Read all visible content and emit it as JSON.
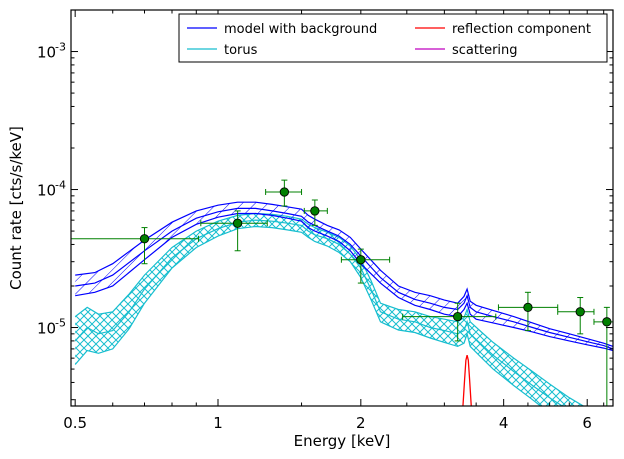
{
  "chart_data": {
    "type": "line",
    "title": "",
    "xlabel": "Energy [keV]",
    "ylabel": "Count rate [cts/s/keV]",
    "xscale": "log",
    "yscale": "log",
    "xlim": [
      0.49,
      6.8
    ],
    "ylim": [
      2.7e-06,
      0.002
    ],
    "x_ticks": [
      0.5,
      1,
      2,
      4,
      6
    ],
    "x_tick_labels": [
      "0.5",
      "1",
      "2",
      "4",
      "6"
    ],
    "y_ticks": [
      1e-05,
      0.0001,
      0.001
    ],
    "y_tick_labels": [
      "10",
      "10",
      "10"
    ],
    "y_tick_exponents": [
      "-5",
      "-4",
      "-3"
    ],
    "grid": false,
    "legend": {
      "placement": "top-right",
      "columns": 2,
      "entries": [
        {
          "label": "model with background",
          "color": "#0000ff"
        },
        {
          "label": "reflection component",
          "color": "#ff0000"
        },
        {
          "label": "torus",
          "color": "#17becf"
        },
        {
          "label": "scattering",
          "color": "#bf00bf"
        }
      ]
    },
    "colors": {
      "model": "#0000ff",
      "torus": "#17becf",
      "reflection": "#ff0000",
      "scattering": "#bf00bf",
      "data": "#008000"
    },
    "series": [
      {
        "name": "model with background",
        "kind": "band",
        "color": "#0000ff",
        "x": [
          0.5,
          0.55,
          0.6,
          0.7,
          0.8,
          0.9,
          1.0,
          1.1,
          1.2,
          1.3,
          1.4,
          1.5,
          1.55,
          1.6,
          1.7,
          1.8,
          1.9,
          2.0,
          2.2,
          2.4,
          2.6,
          2.8,
          3.0,
          3.2,
          3.3,
          3.35,
          3.4,
          3.5,
          3.8,
          4.2,
          4.6,
          5.0,
          5.5,
          6.0,
          6.5,
          6.8
        ],
        "mid": [
          2e-05,
          2.1e-05,
          2.4e-05,
          3.6e-05,
          5e-05,
          6.2e-05,
          6.9e-05,
          7.3e-05,
          7.3e-05,
          7e-05,
          6.7e-05,
          6.4e-05,
          5.8e-05,
          5.5e-05,
          5e-05,
          4.6e-05,
          4e-05,
          3.3e-05,
          2.3e-05,
          1.8e-05,
          1.6e-05,
          1.5e-05,
          1.4e-05,
          1.35e-05,
          1.5e-05,
          1.7e-05,
          1.4e-05,
          1.3e-05,
          1.2e-05,
          1.1e-05,
          1e-05,
          9.2e-06,
          8.5e-06,
          7.9e-06,
          7.4e-06,
          7e-06
        ],
        "lower": [
          1.7e-05,
          1.8e-05,
          2e-05,
          3.1e-05,
          4.5e-05,
          5.6e-05,
          6.3e-05,
          6.7e-05,
          6.7e-05,
          6.5e-05,
          6.2e-05,
          5.9e-05,
          5.3e-05,
          5e-05,
          4.6e-05,
          4.2e-05,
          3.6e-05,
          2.9e-05,
          2.1e-05,
          1.65e-05,
          1.45e-05,
          1.35e-05,
          1.25e-05,
          1.2e-05,
          1.35e-05,
          1.5e-05,
          1.25e-05,
          1.15e-05,
          1.08e-05,
          1e-05,
          9.3e-06,
          8.6e-06,
          8e-06,
          7.5e-06,
          7.1e-06,
          6.8e-06
        ],
        "upper": [
          2.4e-05,
          2.5e-05,
          2.9e-05,
          4.3e-05,
          5.8e-05,
          7e-05,
          7.7e-05,
          8.1e-05,
          8.1e-05,
          7.8e-05,
          7.5e-05,
          7.2e-05,
          6.5e-05,
          6.1e-05,
          5.5e-05,
          5.1e-05,
          4.5e-05,
          3.7e-05,
          2.6e-05,
          2e-05,
          1.8e-05,
          1.7e-05,
          1.58e-05,
          1.5e-05,
          1.68e-05,
          1.9e-05,
          1.55e-05,
          1.45e-05,
          1.33e-05,
          1.2e-05,
          1.08e-05,
          9.8e-06,
          9e-06,
          8.3e-06,
          7.7e-06,
          7.3e-06
        ]
      },
      {
        "name": "torus",
        "kind": "band",
        "color": "#17becf",
        "x": [
          0.5,
          0.53,
          0.56,
          0.6,
          0.65,
          0.7,
          0.8,
          0.9,
          1.0,
          1.1,
          1.2,
          1.3,
          1.4,
          1.5,
          1.55,
          1.6,
          1.7,
          1.8,
          1.9,
          2.0,
          2.1,
          2.2,
          2.4,
          2.6,
          2.8,
          3.0,
          3.2,
          3.3,
          3.35,
          3.4,
          3.6,
          3.8,
          4.2,
          4.6,
          5.0,
          5.5,
          6.0
        ],
        "mid": [
          8e-06,
          1e-05,
          9e-06,
          9.5e-06,
          1.3e-05,
          1.9e-05,
          3.2e-05,
          4.4e-05,
          5.2e-05,
          5.8e-05,
          6e-05,
          5.9e-05,
          5.7e-05,
          5.5e-05,
          5e-05,
          4.7e-05,
          4.4e-05,
          4e-05,
          3.4e-05,
          2.7e-05,
          1.9e-05,
          1.3e-05,
          1.15e-05,
          1.1e-05,
          1e-05,
          9.5e-06,
          9e-06,
          9.5e-06,
          1.1e-05,
          9e-06,
          7.5e-06,
          6.3e-06,
          4.8e-06,
          3.8e-06,
          3.1e-06,
          2.5e-06,
          2.1e-06
        ],
        "lower": [
          5.4e-06,
          6.8e-06,
          6.5e-06,
          7e-06,
          9.8e-06,
          1.5e-05,
          2.7e-05,
          3.8e-05,
          4.6e-05,
          5.2e-05,
          5.4e-05,
          5.3e-05,
          5.1e-05,
          4.9e-05,
          4.5e-05,
          4.2e-05,
          3.9e-05,
          3.5e-05,
          3e-05,
          2.3e-05,
          1.6e-05,
          1.1e-05,
          9.6e-06,
          9.2e-06,
          8.4e-06,
          7.8e-06,
          7.3e-06,
          7.7e-06,
          9e-06,
          7.3e-06,
          6e-06,
          5e-06,
          3.8e-06,
          3e-06,
          2.4e-06,
          2e-06,
          1.6e-06
        ],
        "upper": [
          1.2e-05,
          1.4e-05,
          1.25e-05,
          1.3e-05,
          1.75e-05,
          2.4e-05,
          3.8e-05,
          5e-05,
          5.9e-05,
          6.5e-05,
          6.7e-05,
          6.6e-05,
          6.4e-05,
          6.1e-05,
          5.6e-05,
          5.3e-05,
          4.9e-05,
          4.5e-05,
          3.9e-05,
          3.1e-05,
          2.2e-05,
          1.5e-05,
          1.35e-05,
          1.3e-05,
          1.2e-05,
          1.15e-05,
          1.1e-05,
          1.18e-05,
          1.35e-05,
          1.1e-05,
          9.2e-06,
          7.8e-06,
          6e-06,
          4.8e-06,
          3.9e-06,
          3.1e-06,
          2.6e-06
        ]
      },
      {
        "name": "reflection component",
        "kind": "line",
        "color": "#ff0000",
        "x": [
          3.25,
          3.28,
          3.31,
          3.33,
          3.35,
          3.37,
          3.39,
          3.42,
          3.45
        ],
        "y": [
          2e-06,
          2.6e-06,
          4.2e-06,
          5.8e-06,
          6.3e-06,
          5.8e-06,
          4.2e-06,
          2.6e-06,
          2e-06
        ]
      },
      {
        "name": "data",
        "kind": "errorbar",
        "color": "#008000",
        "x": [
          0.7,
          1.1,
          1.38,
          1.6,
          2.0,
          3.2,
          4.5,
          5.8,
          6.6
        ],
        "y": [
          4.4e-05,
          5.7e-05,
          9.6e-05,
          7e-05,
          3.1e-05,
          1.2e-05,
          1.4e-05,
          1.3e-05,
          1.1e-05
        ],
        "x_low": [
          0.49,
          0.92,
          1.26,
          1.52,
          1.82,
          2.45,
          3.9,
          5.2,
          6.2
        ],
        "x_high": [
          0.91,
          1.27,
          1.5,
          1.7,
          2.3,
          3.85,
          5.2,
          6.2,
          6.8
        ],
        "y_low": [
          2.9e-05,
          3.6e-05,
          7.6e-05,
          5.5e-05,
          2.1e-05,
          8e-06,
          9.5e-06,
          9e-06,
          2.7e-06
        ],
        "y_high": [
          5.3e-05,
          7e-05,
          0.000117,
          8.4e-05,
          3.7e-05,
          1.5e-05,
          1.8e-05,
          1.65e-05,
          1.4e-05
        ]
      }
    ]
  }
}
